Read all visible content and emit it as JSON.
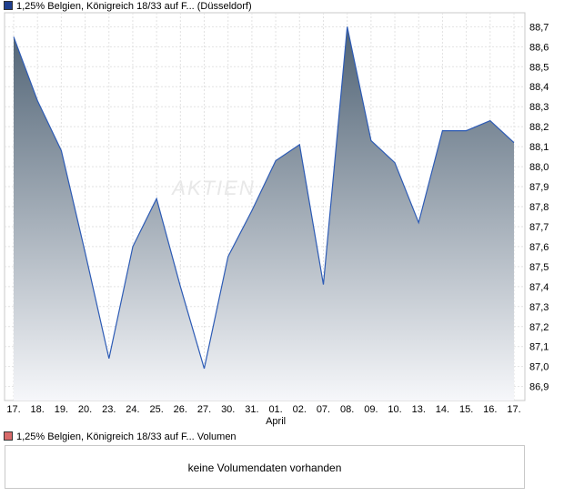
{
  "legend": {
    "price_label": "1,25% Belgien, Königreich 18/33 auf F... (Düsseldorf)",
    "price_color": "#1f3f8f",
    "volume_label": "1,25% Belgien, Königreich 18/33 auf F... Volumen",
    "volume_color": "#d86a6a"
  },
  "watermark": "AKTIEN",
  "volume_panel": {
    "message": "keine Volumendaten vorhanden"
  },
  "chart_data": {
    "type": "area",
    "x": [
      "17.",
      "18.",
      "19.",
      "20.",
      "23.",
      "24.",
      "25.",
      "26.",
      "27.",
      "30.",
      "31.",
      "01.",
      "02.",
      "07.",
      "08.",
      "09.",
      "10.",
      "13.",
      "14.",
      "15.",
      "16.",
      "17."
    ],
    "x_month_label": {
      "at": "01.",
      "text": "April"
    },
    "y": [
      88.65,
      88.33,
      88.08,
      87.57,
      87.04,
      87.6,
      87.84,
      87.4,
      86.99,
      87.55,
      87.78,
      88.03,
      88.11,
      87.41,
      88.7,
      88.13,
      88.02,
      87.72,
      88.18,
      88.18,
      88.23,
      88.12
    ],
    "y_ticks": [
      86.9,
      87.0,
      87.1,
      87.2,
      87.3,
      87.4,
      87.5,
      87.6,
      87.7,
      87.8,
      87.9,
      88.0,
      88.1,
      88.2,
      88.3,
      88.4,
      88.5,
      88.6,
      88.7
    ],
    "y_tick_labels": [
      "86,9",
      "87,0",
      "87,1",
      "87,2",
      "87,3",
      "87,4",
      "87,5",
      "87,6",
      "87,7",
      "87,8",
      "87,9",
      "88,0",
      "88,1",
      "88,2",
      "88,3",
      "88,4",
      "88,5",
      "88,6",
      "88,7"
    ],
    "ylim": [
      86.83,
      88.77
    ],
    "grid": true,
    "line_color": "#2d5bb5",
    "fill_top_color": "#4f6274",
    "fill_bottom_color": "#f6f7fa",
    "title": "",
    "xlabel": "",
    "ylabel": ""
  }
}
